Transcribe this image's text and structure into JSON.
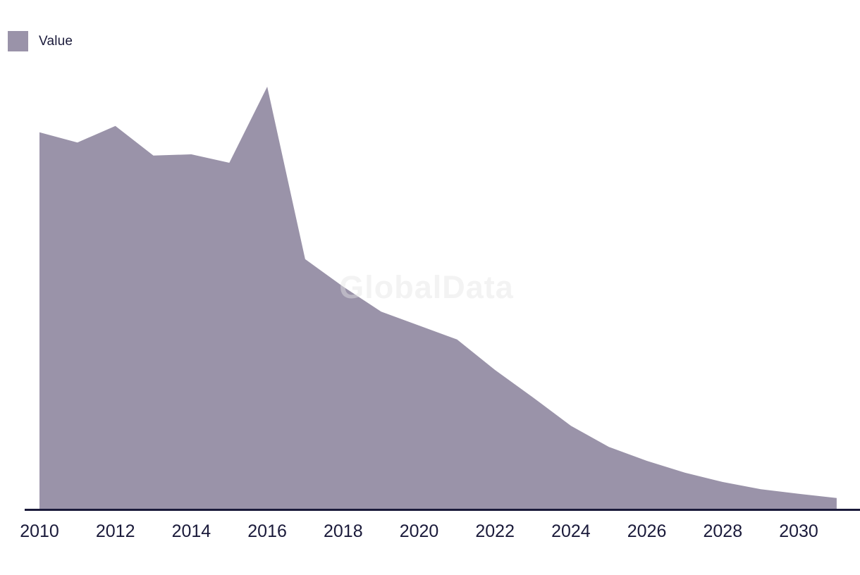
{
  "page": {
    "background_color": "#ffffff"
  },
  "legend": {
    "label": "Value",
    "swatch_color": "#9A93A9",
    "position": "top-left"
  },
  "watermark": {
    "text": "GlobalData"
  },
  "axis": {
    "line_color": "#1A1A3A",
    "label_color": "#1A1A3A"
  },
  "chart_data": {
    "type": "area",
    "title": "",
    "xlabel": "",
    "ylabel": "",
    "grid": false,
    "y_axis_visible": false,
    "legend_position": "top-left",
    "xlim": [
      2010,
      2031
    ],
    "ylim": [
      0,
      105
    ],
    "x_tick_labels": [
      "2010",
      "2012",
      "2014",
      "2016",
      "2018",
      "2020",
      "2022",
      "2024",
      "2026",
      "2028",
      "2030"
    ],
    "series": [
      {
        "name": "Value",
        "color": "#9A93A9",
        "x": [
          2010,
          2011,
          2012,
          2013,
          2014,
          2015,
          2016,
          2017,
          2018,
          2019,
          2020,
          2021,
          2022,
          2023,
          2024,
          2025,
          2026,
          2027,
          2028,
          2029,
          2030,
          2031
        ],
        "values": [
          89.2,
          86.8,
          90.7,
          83.7,
          84.0,
          82.0,
          100.0,
          59.2,
          52.7,
          46.8,
          43.5,
          40.2,
          33.0,
          26.5,
          19.8,
          14.8,
          11.5,
          8.7,
          6.5,
          4.8,
          3.7,
          2.7
        ]
      }
    ]
  }
}
